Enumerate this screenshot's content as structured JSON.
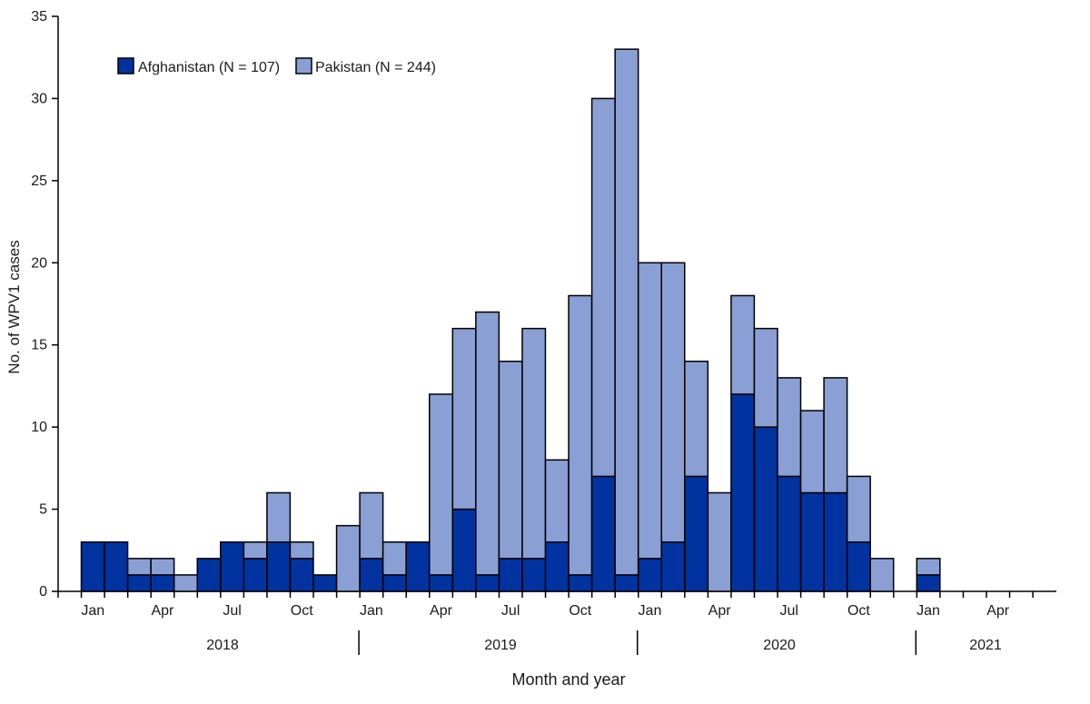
{
  "chart_data": {
    "type": "bar",
    "stacked": true,
    "ylabel": "No. of WPV1 cases",
    "xlabel": "Month and year",
    "ylim": [
      0,
      35
    ],
    "yticks": [
      0,
      5,
      10,
      15,
      20,
      25,
      30,
      35
    ],
    "month_tick_labels": [
      "Jan",
      "Apr",
      "Jul",
      "Oct",
      "Jan",
      "Apr",
      "Jul",
      "Oct",
      "Jan",
      "Apr",
      "Jul",
      "Oct",
      "Jan",
      "Apr"
    ],
    "years": [
      "2018",
      "2019",
      "2020",
      "2021"
    ],
    "categories": [
      "2018-01",
      "2018-02",
      "2018-03",
      "2018-04",
      "2018-05",
      "2018-06",
      "2018-07",
      "2018-08",
      "2018-09",
      "2018-10",
      "2018-11",
      "2018-12",
      "2019-01",
      "2019-02",
      "2019-03",
      "2019-04",
      "2019-05",
      "2019-06",
      "2019-07",
      "2019-08",
      "2019-09",
      "2019-10",
      "2019-11",
      "2019-12",
      "2020-01",
      "2020-02",
      "2020-03",
      "2020-04",
      "2020-05",
      "2020-06",
      "2020-07",
      "2020-08",
      "2020-09",
      "2020-10",
      "2020-11",
      "2020-12",
      "2021-01",
      "2021-02",
      "2021-03",
      "2021-04",
      "2021-05",
      "2021-06"
    ],
    "legend_position": "top-left",
    "series": [
      {
        "name": "Afghanistan (N = 107)",
        "color": "#0033a0",
        "values": [
          3,
          3,
          1,
          1,
          0,
          2,
          3,
          2,
          3,
          2,
          1,
          0,
          2,
          1,
          3,
          1,
          5,
          1,
          2,
          2,
          3,
          1,
          7,
          1,
          2,
          3,
          7,
          0,
          12,
          10,
          7,
          6,
          6,
          3,
          0,
          0,
          1,
          0,
          0,
          0,
          0,
          0
        ]
      },
      {
        "name": "Pakistan (N = 244)",
        "color": "#8a9fd4",
        "values": [
          0,
          0,
          1,
          1,
          1,
          0,
          0,
          1,
          3,
          1,
          0,
          4,
          4,
          2,
          0,
          11,
          11,
          16,
          12,
          14,
          5,
          17,
          23,
          32,
          18,
          17,
          7,
          6,
          6,
          6,
          6,
          5,
          7,
          4,
          2,
          0,
          1,
          0,
          0,
          0,
          0,
          0
        ]
      }
    ]
  }
}
